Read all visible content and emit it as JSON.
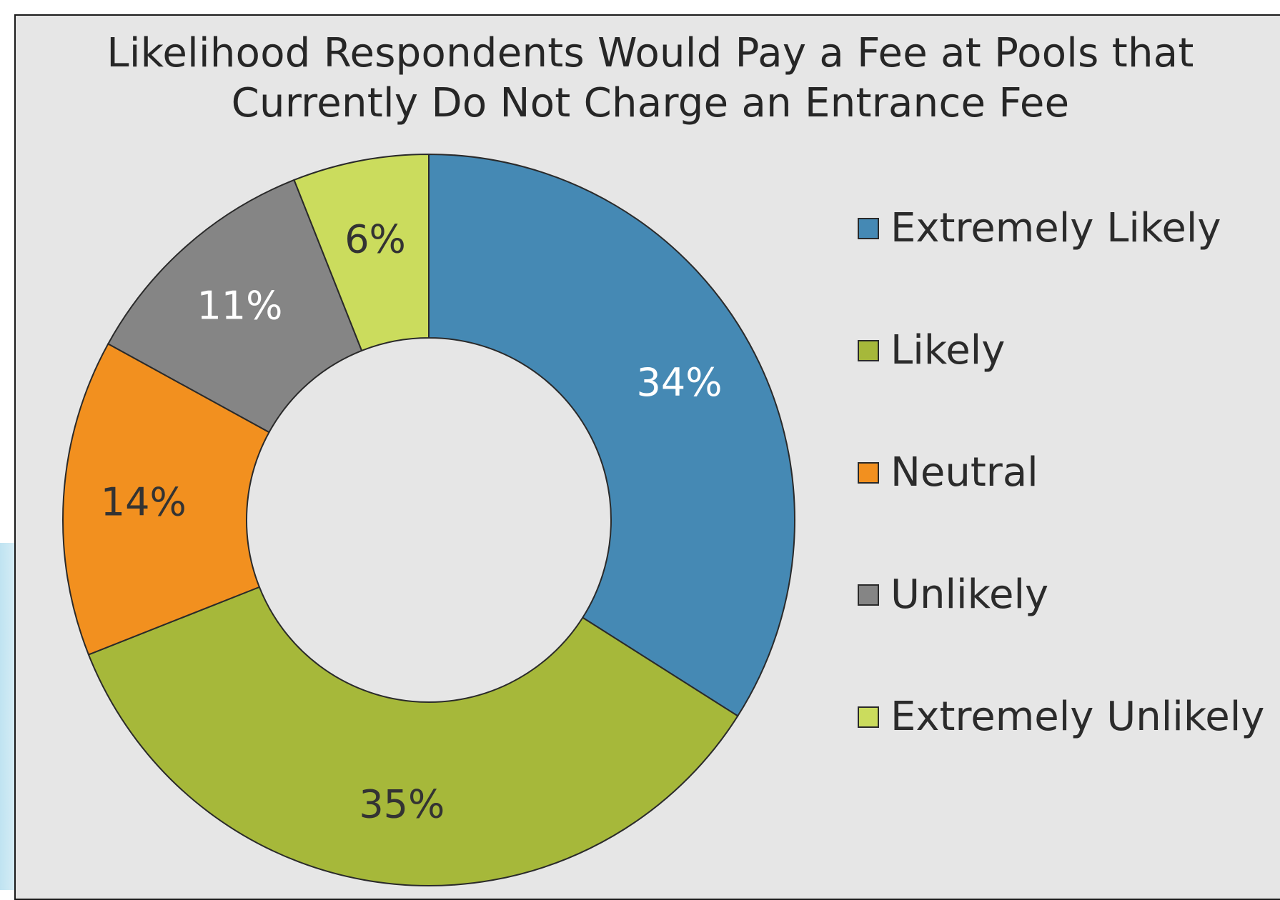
{
  "chart_data": {
    "type": "pie",
    "variant": "donut",
    "title": "Likelihood Respondents Would Pay a Fee at Pools that Currently Do Not Charge an Entrance Fee",
    "categories": [
      "Extremely Likely",
      "Likely",
      "Neutral",
      "Unlikely",
      "Extremely Unlikely"
    ],
    "values": [
      34,
      35,
      14,
      11,
      6
    ],
    "value_labels": [
      "34%",
      "35%",
      "14%",
      "11%",
      "6%"
    ],
    "colors": [
      "#4589b4",
      "#a6b83a",
      "#f2901f",
      "#858585",
      "#cbdc5d"
    ],
    "label_colors": [
      "#ffffff",
      "#333333",
      "#333333",
      "#ffffff",
      "#333333"
    ],
    "start_angle": "12 o'clock",
    "direction": "clockwise",
    "legend_position": "right"
  }
}
